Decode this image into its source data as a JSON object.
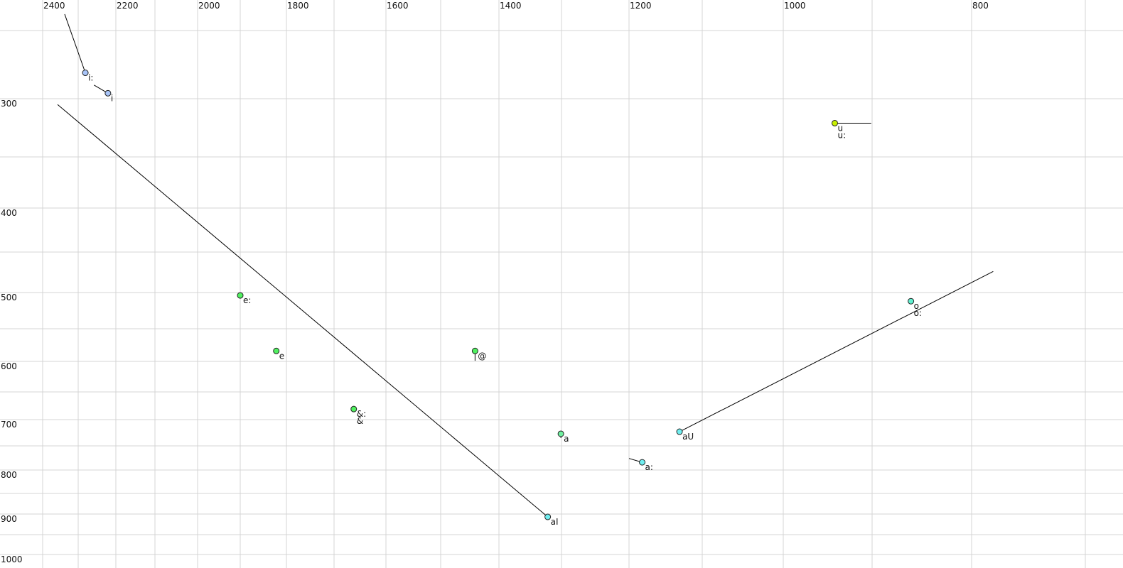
{
  "chart_data": {
    "type": "scatter",
    "title": "",
    "xlabel": "",
    "ylabel": "",
    "x_reversed": true,
    "y_reversed": true,
    "grid": true,
    "x_ticks": [
      2400,
      2200,
      2000,
      1800,
      1600,
      1400,
      1200,
      1000,
      800
    ],
    "y_ticks": [
      300,
      400,
      500,
      600,
      700,
      800,
      900,
      1000
    ],
    "xlim": [
      2400,
      700
    ],
    "ylim": [
      250,
      1000
    ],
    "points": [
      {
        "labels": [
          "i:"
        ],
        "x": 2281,
        "y": 281,
        "color": "#a8c4f8",
        "trajectory_from": [
          2338,
          238
        ]
      },
      {
        "labels": [
          "i"
        ],
        "x": 2221,
        "y": 296,
        "color": "#a8c4f8",
        "trajectory_from": [
          2258,
          290
        ]
      },
      {
        "labels": [
          "u",
          "u:"
        ],
        "x": 942,
        "y": 321,
        "color": "#c8f000",
        "trajectory_to": [
          901,
          321
        ]
      },
      {
        "labels": [
          "e:"
        ],
        "x": 1900,
        "y": 504,
        "color": "#50f060"
      },
      {
        "labels": [
          "e"
        ],
        "x": 1822,
        "y": 584,
        "color": "#50f060"
      },
      {
        "labels": [
          "@"
        ],
        "x": 1441,
        "y": 584,
        "color": "#50f060",
        "trajectory_to": [
          1441,
          599
        ]
      },
      {
        "labels": [
          "&:",
          "&"
        ],
        "x": 1662,
        "y": 681,
        "color": "#50f060"
      },
      {
        "labels": [
          "a"
        ],
        "x": 1301,
        "y": 727,
        "color": "#70f0a0",
        "trajectory_to": [
          1301,
          735
        ]
      },
      {
        "labels": [
          "a:"
        ],
        "x": 1182,
        "y": 784,
        "color": "#70eef0",
        "trajectory_from": [
          1200,
          776
        ]
      },
      {
        "labels": [
          "aI"
        ],
        "x": 1322,
        "y": 907,
        "color": "#70eef0",
        "trajectory_to": [
          2358,
          305
        ]
      },
      {
        "labels": [
          "aU"
        ],
        "x": 1131,
        "y": 723,
        "color": "#70eef0",
        "trajectory_to": [
          781,
          474
        ]
      },
      {
        "labels": [
          "o",
          "o:"
        ],
        "x": 861,
        "y": 512,
        "color": "#60f0d0"
      }
    ]
  }
}
